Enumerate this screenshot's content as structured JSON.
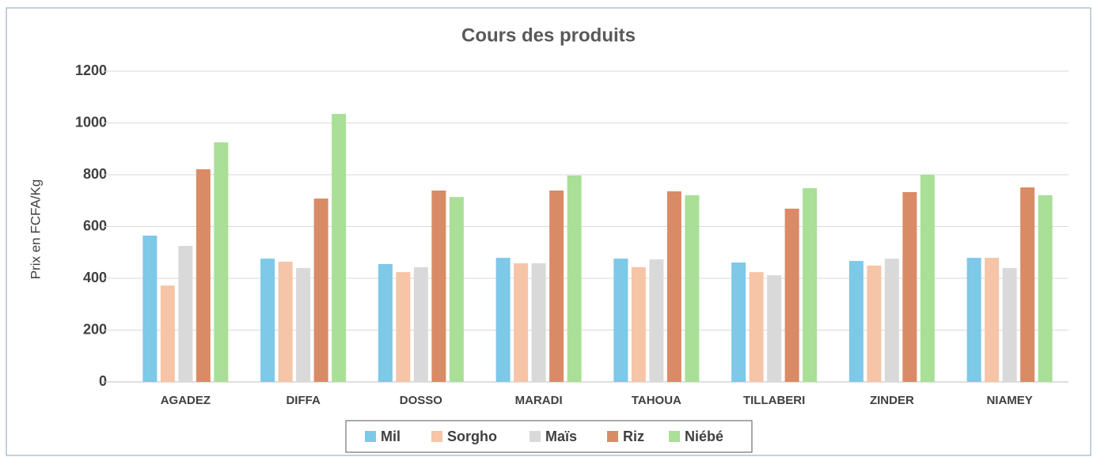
{
  "chart_data": {
    "type": "bar",
    "title": "Cours des produits",
    "ylabel": "Prix en FCFA/Kg",
    "categories": [
      "AGADEZ",
      "DIFFA",
      "DOSSO",
      "MARADI",
      "TAHOUA",
      "TILLABERI",
      "ZINDER",
      "NIAMEY"
    ],
    "series": [
      {
        "name": "Mil",
        "color": "#7ec8e8",
        "values": [
          565,
          476,
          455,
          479,
          476,
          461,
          467,
          479
        ]
      },
      {
        "name": "Sorgho",
        "color": "#f6c4a6",
        "values": [
          372,
          464,
          424,
          458,
          443,
          424,
          449,
          479
        ]
      },
      {
        "name": "Maïs",
        "color": "#d9d9d9",
        "values": [
          525,
          440,
          443,
          458,
          473,
          412,
          476,
          440
        ]
      },
      {
        "name": "Riz",
        "color": "#d98b66",
        "values": [
          821,
          708,
          739,
          739,
          736,
          669,
          733,
          751
        ]
      },
      {
        "name": "Niébé",
        "color": "#a9df96",
        "values": [
          925,
          1035,
          714,
          797,
          721,
          748,
          800,
          721
        ]
      }
    ],
    "ylim": [
      0,
      1200
    ],
    "yticks": [
      0,
      200,
      400,
      600,
      800,
      1000,
      1200
    ],
    "grid": true,
    "legend": "bottom"
  }
}
